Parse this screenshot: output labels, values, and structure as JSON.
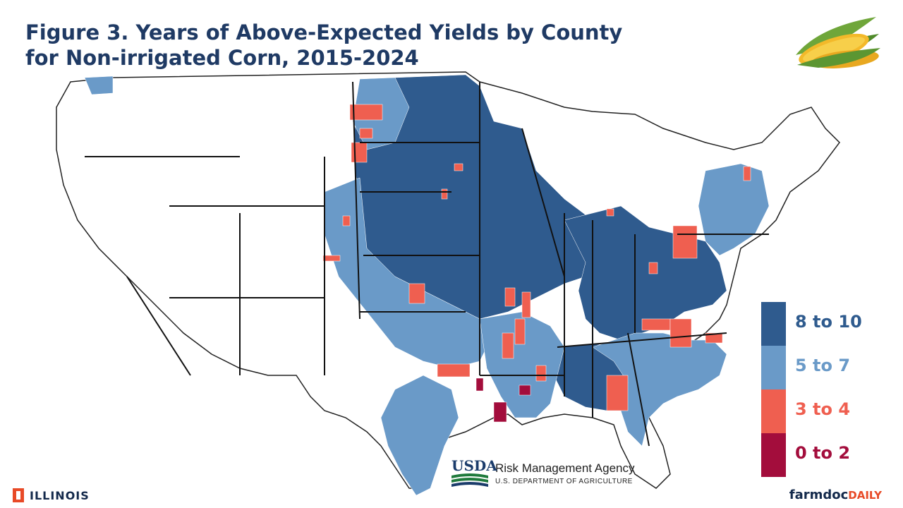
{
  "title": {
    "line1": "Figure 3. Years of Above-Expected Yields by County",
    "line2": "for Non-irrigated Corn, 2015-2024"
  },
  "legend": [
    {
      "label": "8 to 10",
      "color": "#2f5b8e",
      "text_color": "#2f5b8e"
    },
    {
      "label": "5 to 7",
      "color": "#6a9ac8",
      "text_color": "#6a9ac8"
    },
    {
      "label": "3 to 4",
      "color": "#ef5f50",
      "text_color": "#ef5f50"
    },
    {
      "label": "0 to 2",
      "color": "#a30d3c",
      "text_color": "#a30d3c"
    }
  ],
  "logos": {
    "illinois": "ILLINOIS",
    "usda_word": "USDA",
    "usda_agency": "Risk Management Agency",
    "usda_dept": "U.S. DEPARTMENT OF AGRICULTURE",
    "farmdoc_main": "farmdoc",
    "farmdoc_sub": "DAILY"
  },
  "map": {
    "type": "choropleth",
    "region": "Contiguous United States, by county",
    "no_data_color": "#ffffff",
    "icon": "corn-icon"
  }
}
